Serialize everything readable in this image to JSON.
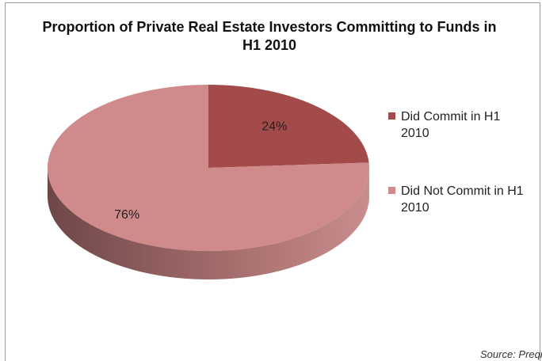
{
  "chart_data": {
    "type": "pie",
    "title": "Proportion of Private Real Estate Investors Committing to Funds in H1 2010",
    "categories": [
      "Did Commit in H1 2010",
      "Did Not Commit in H1 2010"
    ],
    "values": [
      24,
      76
    ],
    "value_labels": [
      "24%",
      "76%"
    ],
    "colors": [
      "#a34a4b",
      "#d08a8b"
    ],
    "legend": "right",
    "source": "Source: Preqin"
  }
}
